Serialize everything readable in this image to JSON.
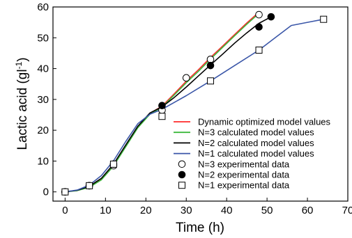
{
  "chart_data": {
    "type": "line",
    "xlabel": "Time (h)",
    "ylabel": "Lactic acid (gl",
    "ylabel_sup": "-1",
    "ylabel_close": ")",
    "xlim": [
      -3,
      70
    ],
    "ylim": [
      -3,
      60
    ],
    "x_ticks": [
      0,
      10,
      20,
      30,
      40,
      50,
      60,
      70
    ],
    "y_ticks": [
      0,
      10,
      20,
      30,
      40,
      50,
      60
    ],
    "grid": false,
    "legend_position": "bottom-right",
    "series": [
      {
        "name": "Dynamic optimized model values",
        "kind": "line",
        "color": "#ff2a2a",
        "x": [
          0,
          3,
          6,
          9,
          12,
          15,
          18,
          21,
          24,
          27,
          30,
          33,
          36,
          39,
          42,
          45,
          48
        ],
        "y": [
          0,
          0.5,
          1.8,
          4.3,
          8.8,
          14.8,
          21.0,
          25.5,
          27.8,
          31.8,
          35.9,
          39.6,
          43.6,
          47.3,
          51.1,
          54.8,
          58.3
        ]
      },
      {
        "name": "N=3 calculated model values",
        "kind": "line",
        "color": "#3cb83c",
        "x": [
          0,
          3,
          6,
          9,
          12,
          15,
          18,
          21,
          24,
          27,
          30,
          33,
          36,
          39,
          42,
          45,
          48
        ],
        "y": [
          0,
          0.4,
          1.5,
          3.9,
          8.4,
          14.6,
          20.8,
          25.2,
          27.5,
          31.4,
          35.4,
          39.1,
          43.1,
          46.9,
          50.7,
          54.4,
          57.9
        ]
      },
      {
        "name": "N=2 calculated model values",
        "kind": "line",
        "color": "#000000",
        "x": [
          0,
          3,
          6,
          9,
          12,
          15,
          18,
          21,
          24,
          27,
          30,
          33,
          36,
          39,
          42,
          45,
          48,
          51
        ],
        "y": [
          0,
          0.5,
          1.8,
          4.4,
          9.0,
          15.2,
          21.3,
          25.6,
          27.6,
          30.6,
          34.0,
          37.6,
          41.2,
          44.7,
          48.3,
          51.6,
          54.7,
          56.8
        ]
      },
      {
        "name": "N=1 calculated model values",
        "kind": "line",
        "color": "#3a56a8",
        "x": [
          0,
          3,
          6,
          9,
          12,
          15,
          18,
          21,
          24,
          27,
          30,
          36,
          42,
          48,
          52,
          56,
          60,
          64
        ],
        "y": [
          0,
          0.6,
          2.2,
          5.3,
          10.1,
          16.3,
          22.1,
          25.2,
          26.8,
          29.0,
          31.2,
          36.0,
          41.0,
          46.0,
          50.0,
          54.0,
          55.0,
          56.0
        ]
      },
      {
        "name": "N=3 experimental data",
        "kind": "scatter",
        "marker": "circle-open",
        "x": [
          0,
          6,
          12,
          24,
          30,
          36,
          48
        ],
        "y": [
          0,
          2,
          8.5,
          26.5,
          37,
          43,
          57.5
        ]
      },
      {
        "name": "N=2 experimental data",
        "kind": "scatter",
        "marker": "circle-filled",
        "x": [
          0,
          6,
          12,
          24,
          36,
          48,
          51
        ],
        "y": [
          0,
          2,
          9,
          28,
          41,
          53.5,
          56.8
        ]
      },
      {
        "name": "N=1 experimental data",
        "kind": "scatter",
        "marker": "square-open",
        "x": [
          0,
          6,
          12,
          24,
          36,
          48,
          64
        ],
        "y": [
          0,
          2,
          9,
          24.5,
          36,
          46,
          56
        ]
      }
    ]
  }
}
